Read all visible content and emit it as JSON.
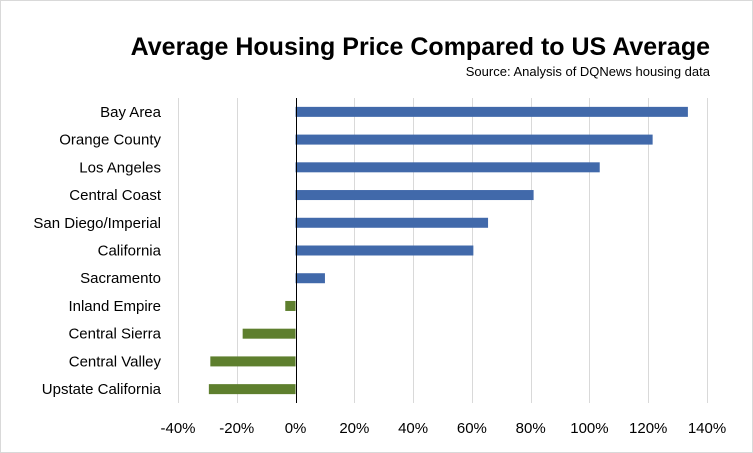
{
  "chart_data": {
    "type": "bar",
    "orientation": "horizontal",
    "title": "Average Housing Price Compared to US Average",
    "subtitle": "Source:  Analysis of DQNews housing data",
    "categories": [
      "Bay Area",
      "Orange County",
      "Los Angeles",
      "Central Coast",
      "San Diego/Imperial",
      "California",
      "Sacramento",
      "Inland Empire",
      "Central Sierra",
      "Central Valley",
      "Upstate California"
    ],
    "values": [
      133.5,
      121.5,
      103.5,
      81,
      65.5,
      60.5,
      10,
      -3.5,
      -18,
      -29,
      -29.5
    ],
    "xlim": [
      -40,
      140
    ],
    "xticks": [
      -40,
      -20,
      0,
      20,
      40,
      60,
      80,
      100,
      120,
      140
    ],
    "xtick_labels": [
      "-40%",
      "-20%",
      "0%",
      "20%",
      "40%",
      "60%",
      "80%",
      "100%",
      "120%",
      "140%"
    ],
    "grid": "vertical",
    "legend": "none",
    "colors": {
      "positive": "#4169aa",
      "negative": "#5e7f2e"
    }
  }
}
